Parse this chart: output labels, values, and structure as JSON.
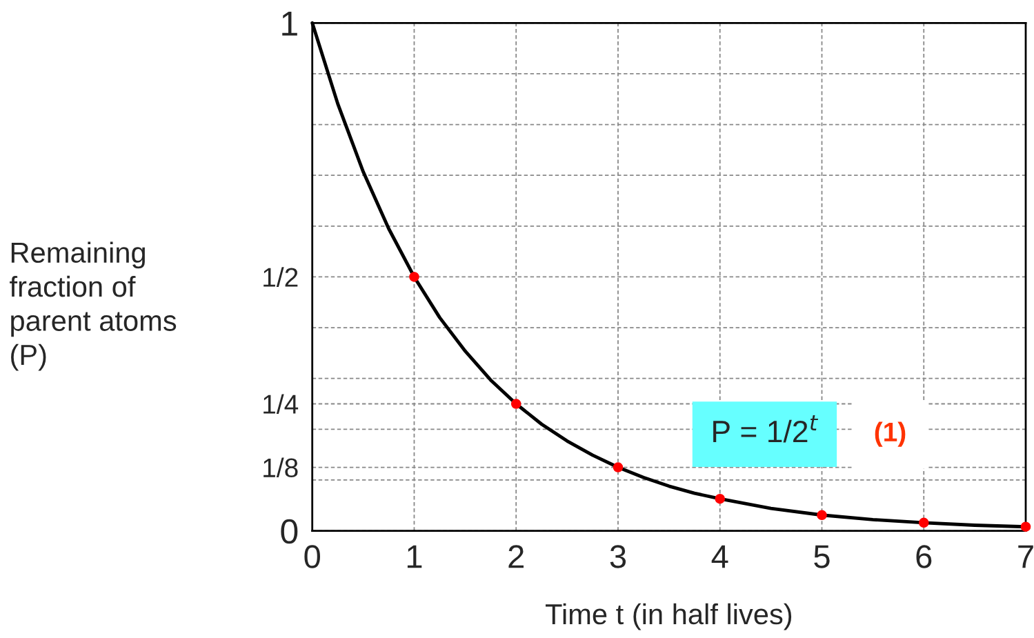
{
  "chart_data": {
    "type": "line",
    "xlabel": "Time t (in half lives)",
    "ylabel": "Remaining\nfraction of\nparent atoms\n(P)",
    "xlim": [
      0,
      7
    ],
    "ylim": [
      0,
      1
    ],
    "xticks": [
      0,
      1,
      2,
      3,
      4,
      5,
      6,
      7
    ],
    "yticks": [
      {
        "value": 0,
        "label": "0"
      },
      {
        "value": 0.1,
        "label": null
      },
      {
        "value": 0.125,
        "label": "1/8"
      },
      {
        "value": 0.2,
        "label": null
      },
      {
        "value": 0.25,
        "label": "1/4"
      },
      {
        "value": 0.3,
        "label": null
      },
      {
        "value": 0.4,
        "label": null
      },
      {
        "value": 0.5,
        "label": "1/2"
      },
      {
        "value": 0.6,
        "label": null
      },
      {
        "value": 0.7,
        "label": null
      },
      {
        "value": 0.8,
        "label": null
      },
      {
        "value": 0.9,
        "label": null
      },
      {
        "value": 1,
        "label": "1"
      }
    ],
    "grid": true,
    "legend": false,
    "series": [
      {
        "color": "#000000",
        "marker": "none",
        "line_style": "solid",
        "x": [
          0,
          0.25,
          0.5,
          0.75,
          1,
          1.25,
          1.5,
          1.75,
          2,
          2.25,
          2.5,
          2.75,
          3,
          3.25,
          3.5,
          3.75,
          4,
          4.5,
          5,
          5.5,
          6,
          6.5,
          7
        ],
        "values": [
          1,
          0.841,
          0.707,
          0.595,
          0.5,
          0.42,
          0.354,
          0.297,
          0.25,
          0.21,
          0.177,
          0.149,
          0.125,
          0.105,
          0.088,
          0.074,
          0.063,
          0.044,
          0.031,
          0.022,
          0.016,
          0.011,
          0.008
        ]
      },
      {
        "type": "scatter",
        "color": "#ff0000",
        "marker": "circle",
        "x": [
          1,
          2,
          3,
          4,
          5,
          6,
          7
        ],
        "values": [
          0.5,
          0.25,
          0.125,
          0.063,
          0.031,
          0.016,
          0.008
        ]
      }
    ],
    "annotations": [
      "P = 1/2$^{t}$",
      "(1)"
    ]
  }
}
